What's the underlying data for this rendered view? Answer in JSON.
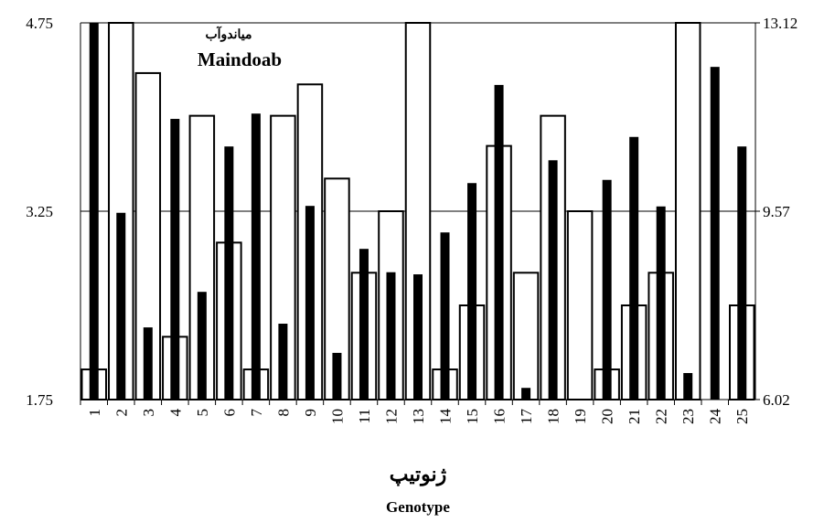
{
  "chart_data": {
    "type": "bar",
    "annotations": [
      "میاندوآب",
      "Maindoab"
    ],
    "xlabel": [
      "ژنوتیپ",
      "Genotype"
    ],
    "categories": [
      "1",
      "2",
      "3",
      "4",
      "5",
      "6",
      "7",
      "8",
      "9",
      "10",
      "11",
      "12",
      "13",
      "14",
      "15",
      "16",
      "17",
      "18",
      "19",
      "20",
      "21",
      "22",
      "23",
      "24",
      "25"
    ],
    "series": [
      {
        "color": "#ffffff",
        "values": [
          1.99,
          4.75,
          4.35,
          2.25,
          4.01,
          3.0,
          1.99,
          4.01,
          4.26,
          3.51,
          2.76,
          3.25,
          4.75,
          1.99,
          2.5,
          3.77,
          2.76,
          4.01,
          3.25,
          1.99,
          2.5,
          2.76,
          4.75,
          1.75,
          2.5
        ]
      },
      {
        "color": "#000000",
        "axis": "y2",
        "values": [
          13.12,
          9.54,
          7.38,
          11.31,
          8.05,
          10.79,
          11.41,
          7.45,
          9.67,
          6.9,
          8.86,
          8.42,
          8.38,
          9.17,
          10.1,
          11.95,
          6.24,
          10.53,
          6.02,
          10.16,
          10.97,
          9.66,
          6.52,
          12.29,
          10.79
        ]
      }
    ],
    "ylim": [
      1.75,
      4.75
    ],
    "yticks": [
      1.75,
      3.25,
      4.75
    ],
    "y2lim": [
      6.02,
      13.12
    ],
    "y2ticks": [
      6.02,
      9.57,
      13.12
    ],
    "grid": true
  }
}
